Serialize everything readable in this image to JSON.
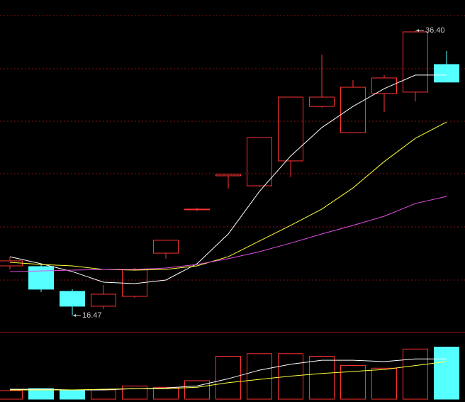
{
  "chart_data": {
    "type": "candlestick",
    "up_color": "#ff3232",
    "down_color": "#54ffff",
    "ylim": [
      15.33,
      38.53
    ],
    "open": [
      19.94,
      19.89,
      18.16,
      17.12,
      17.81,
      20.83,
      23.86,
      26.24,
      25.54,
      27.28,
      31.09,
      29.26,
      31.99,
      32.09,
      34.02
    ],
    "high": [
      20.58,
      20.09,
      18.31,
      18.6,
      19.79,
      21.73,
      24.01,
      26.34,
      28.91,
      31.74,
      34.71,
      32.93,
      33.28,
      36.4,
      34.96
    ],
    "low": [
      19.69,
      18.11,
      16.47,
      16.92,
      17.71,
      20.44,
      23.76,
      25.34,
      25.44,
      26.14,
      31.0,
      29.26,
      30.7,
      31.44,
      32.79
    ],
    "close": [
      20.29,
      18.31,
      17.12,
      17.96,
      19.69,
      21.73,
      23.91,
      26.34,
      28.91,
      31.74,
      31.74,
      32.43,
      33.08,
      36.3,
      32.79
    ],
    "ma": [
      {
        "color": "#ffffff",
        "values": [
          20.58,
          20.09,
          19.54,
          18.8,
          18.7,
          18.95,
          20.09,
          22.17,
          25.15,
          27.62,
          29.61,
          31.09,
          32.33,
          33.28,
          33.28
        ]
      },
      {
        "color": "#ffff3c",
        "values": [
          20.19,
          20.04,
          19.94,
          19.69,
          19.64,
          19.69,
          19.94,
          20.58,
          21.68,
          22.77,
          23.91,
          25.39,
          27.23,
          28.86,
          30.0
        ]
      },
      {
        "color": "#e050e0",
        "values": [
          19.54,
          19.59,
          19.64,
          19.69,
          19.69,
          19.79,
          20.04,
          20.44,
          20.93,
          21.53,
          22.17,
          22.77,
          23.41,
          24.3,
          24.8
        ]
      }
    ],
    "max_label": {
      "value": 36.4,
      "label": "36.40"
    },
    "min_label": {
      "value": 16.47,
      "label": "16.47"
    },
    "volume": {
      "ylim": [
        0,
        100
      ],
      "values": [
        13,
        16,
        14,
        14,
        20,
        18,
        28,
        65,
        69,
        69,
        65,
        51,
        47,
        76,
        79
      ],
      "ma": [
        {
          "color": "#ffffff",
          "values": [
            15,
            15,
            14,
            14,
            16,
            17,
            20,
            31,
            44,
            53,
            59,
            59,
            57,
            61,
            61
          ]
        },
        {
          "color": "#ffff3c",
          "values": [
            14,
            14,
            14,
            15,
            16,
            16,
            18,
            25,
            30,
            35,
            39,
            42,
            45,
            51,
            57
          ]
        }
      ]
    }
  }
}
